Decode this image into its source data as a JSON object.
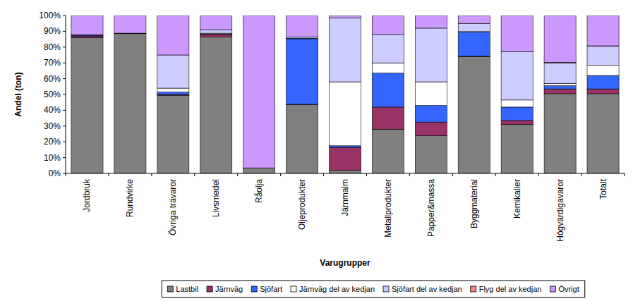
{
  "chart_data": {
    "type": "bar",
    "stacked": true,
    "grid": false,
    "legend": "bottom",
    "x_label": "Varugrupper",
    "y_label": "Andel (ton)",
    "categories": [
      "Jordbruk",
      "Rundvirke",
      "Övriga trävaror",
      "Livsmedel",
      "Råolja",
      "Oljeprodukter",
      "Järnmalm",
      "Metallprodukter",
      "Papper&massa",
      "Byggmaterial",
      "Kemikalier",
      "Högvärdigavaror",
      "Totalt"
    ],
    "ylim": [
      0,
      100
    ],
    "yticks": [
      {
        "value": 0,
        "label": "0%"
      },
      {
        "value": 10,
        "label": "10%"
      },
      {
        "value": 20,
        "label": "20%"
      },
      {
        "value": 30,
        "label": "30%"
      },
      {
        "value": 40,
        "label": "40%"
      },
      {
        "value": 50,
        "label": "50%"
      },
      {
        "value": 60,
        "label": "60%"
      },
      {
        "value": 70,
        "label": "70%"
      },
      {
        "value": 80,
        "label": "80%"
      },
      {
        "value": 90,
        "label": "90%"
      },
      {
        "value": 100,
        "label": "100%"
      }
    ],
    "series": [
      {
        "name": "Lastbil",
        "color": "#808080",
        "values": [
          86,
          88.5,
          49.5,
          86.5,
          3.5,
          43.5,
          2,
          28,
          24,
          74,
          31,
          50.5,
          50.5
        ]
      },
      {
        "name": "Järnväg",
        "color": "#993366",
        "values": [
          1,
          0,
          0.5,
          1.5,
          0,
          0.3,
          14.5,
          14,
          8.5,
          0.3,
          2.5,
          3,
          3
        ]
      },
      {
        "name": "Sjöfart",
        "color": "#3366ff",
        "values": [
          0.5,
          0,
          1.5,
          0.3,
          0,
          41.5,
          1,
          21.5,
          10.5,
          15.2,
          8.5,
          2,
          8.5
        ]
      },
      {
        "name": "Järnväg del av kedjan",
        "color": "#ffffff",
        "values": [
          0,
          0,
          2.5,
          0.5,
          0,
          0.3,
          40.5,
          6.5,
          15,
          0.3,
          4.5,
          1.5,
          6.5
        ]
      },
      {
        "name": "Sjöfart del av kedjan",
        "color": "#ccccff",
        "values": [
          0.3,
          0.3,
          21,
          2.2,
          0,
          0.8,
          40.5,
          18,
          34,
          5.2,
          30.5,
          13,
          12
        ]
      },
      {
        "name": "Flyg del av kedjan",
        "color": "#ff8080",
        "values": [
          0,
          0,
          0,
          0,
          0,
          0,
          0,
          0,
          0,
          0,
          0.1,
          0.3,
          0.3
        ]
      },
      {
        "name": "Övrigt",
        "color": "#cc99ff",
        "values": [
          12.2,
          11.2,
          25,
          9,
          96.5,
          13.6,
          1.5,
          12,
          8,
          5,
          22.9,
          29.7,
          19.2
        ]
      }
    ]
  }
}
